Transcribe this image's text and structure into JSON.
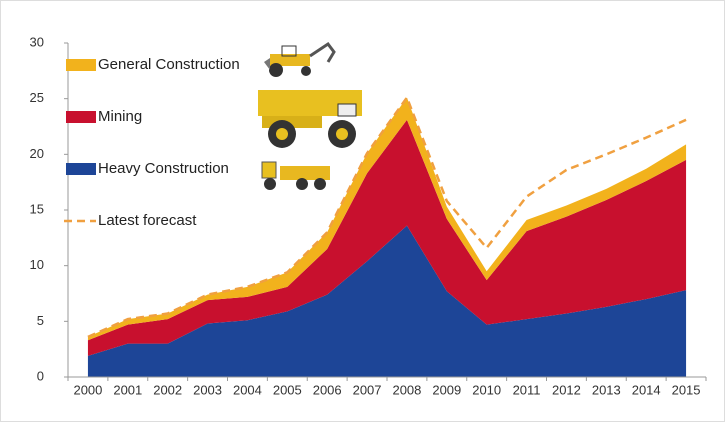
{
  "chart_data": {
    "type": "stacked_area",
    "categories": [
      "2000",
      "2001",
      "2002",
      "2003",
      "2004",
      "2005",
      "2006",
      "2007",
      "2008",
      "2009",
      "2010",
      "2011",
      "2012",
      "2013",
      "2014",
      "2015"
    ],
    "series": [
      {
        "name": "Heavy Construction",
        "color": "#1d4597",
        "values": [
          1.9,
          3.0,
          3.0,
          4.8,
          5.1,
          5.9,
          7.4,
          10.4,
          13.6,
          7.7,
          4.7,
          5.2,
          5.7,
          6.3,
          7.0,
          7.8
        ]
      },
      {
        "name": "Mining",
        "color": "#c8102e",
        "values": [
          1.4,
          1.7,
          2.2,
          2.1,
          2.1,
          2.2,
          4.1,
          7.9,
          9.5,
          6.5,
          4.0,
          7.9,
          8.7,
          9.6,
          10.6,
          11.7
        ]
      },
      {
        "name": "General Construction",
        "color": "#f2b21c",
        "values": [
          0.3,
          0.5,
          0.5,
          0.5,
          0.9,
          1.3,
          1.5,
          1.8,
          2.0,
          1.1,
          0.8,
          1.0,
          1.0,
          1.0,
          1.1,
          1.4
        ]
      }
    ],
    "forecast": {
      "name": "Latest forecast",
      "color": "#f0a040",
      "values": [
        3.6,
        5.2,
        5.7,
        7.4,
        8.1,
        9.4,
        13.0,
        20.1,
        25.1,
        15.8,
        11.6,
        16.2,
        18.6,
        20.0,
        21.5,
        23.1
      ]
    },
    "ylim": [
      0,
      30
    ],
    "yticks": [
      0,
      5,
      10,
      15,
      20,
      25,
      30
    ],
    "grid": false
  }
}
